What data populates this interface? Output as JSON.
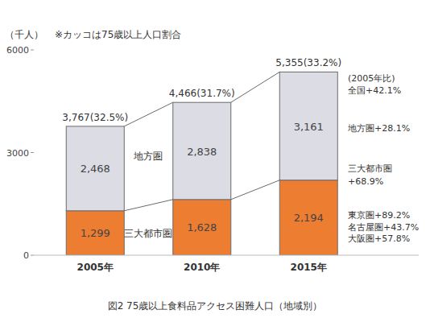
{
  "chart_data": {
    "type": "bar",
    "stacked": true,
    "data_labels": true,
    "grid": false,
    "title": "図2 75歳以上食料品アクセス困難人口（地域別）",
    "y_label": "（千人）",
    "note": "※カッコは75歳以上人口割合",
    "categories": [
      "2005年",
      "2010年",
      "2015年"
    ],
    "series": [
      {
        "name": "三大都市圏",
        "color": "#ed7d31",
        "values": [
          1299,
          1628,
          2194
        ],
        "value_labels": [
          "1,299",
          "1,628",
          "2,194"
        ]
      },
      {
        "name": "地方圏",
        "color": "#dcdce4",
        "values": [
          2468,
          2838,
          3161
        ],
        "value_labels": [
          "2,468",
          "2,838",
          "3,161"
        ]
      }
    ],
    "totals": {
      "values": [
        3767,
        4466,
        5355
      ],
      "value_labels": [
        "3,767(32.5%)",
        "4,466(31.7%)",
        "5,355(33.2%)"
      ]
    },
    "annotations": [
      "(2005年比)",
      "全国+42.1%",
      "地方圏+28.1%",
      "三大都市圏",
      "+68.9%",
      "東京圏+89.2%",
      "名古屋圏+43.7%",
      "大阪圏+57.8%"
    ],
    "ylim": [
      0,
      6000
    ],
    "yticks": [
      0,
      3000,
      6000
    ]
  }
}
